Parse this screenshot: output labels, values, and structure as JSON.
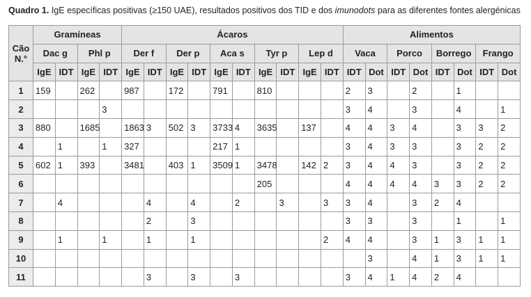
{
  "caption": {
    "label": "Quadro 1.",
    "before": "IgE específicas positivas (≥150 UAE), resultados positivos dos TID e dos",
    "italic": "imunodots",
    "after": "para as diferentes fontes alergénicas"
  },
  "table": {
    "corner": "Cão N.°",
    "groups": [
      {
        "label": "Gramíneas",
        "allergens": [
          {
            "name": "Dac g",
            "tests": [
              "IgE",
              "IDT"
            ]
          },
          {
            "name": "Phl p",
            "tests": [
              "IgE",
              "IDT"
            ]
          }
        ]
      },
      {
        "label": "Ácaros",
        "allergens": [
          {
            "name": "Der f",
            "tests": [
              "IgE",
              "IDT"
            ]
          },
          {
            "name": "Der p",
            "tests": [
              "IgE",
              "IDT"
            ]
          },
          {
            "name": "Aca s",
            "tests": [
              "IgE",
              "IDT"
            ]
          },
          {
            "name": "Tyr p",
            "tests": [
              "IgE",
              "IDT"
            ]
          },
          {
            "name": "Lep d",
            "tests": [
              "IgE",
              "IDT"
            ]
          }
        ]
      },
      {
        "label": "Alimentos",
        "allergens": [
          {
            "name": "Vaca",
            "tests": [
              "IDT",
              "Dot"
            ]
          },
          {
            "name": "Porco",
            "tests": [
              "IDT",
              "Dot"
            ]
          },
          {
            "name": "Borrego",
            "tests": [
              "IDT",
              "Dot"
            ]
          },
          {
            "name": "Frango",
            "tests": [
              "IDT",
              "Dot"
            ]
          }
        ]
      }
    ],
    "rows": [
      [
        1,
        159,
        null,
        262,
        null,
        987,
        null,
        172,
        null,
        791,
        null,
        810,
        null,
        null,
        null,
        2,
        3,
        null,
        2,
        null,
        1,
        null,
        null
      ],
      [
        2,
        null,
        null,
        null,
        3,
        null,
        null,
        null,
        null,
        null,
        null,
        null,
        null,
        null,
        null,
        3,
        4,
        null,
        3,
        null,
        4,
        null,
        1
      ],
      [
        3,
        880,
        null,
        1685,
        null,
        1863,
        3,
        502,
        3,
        3733,
        4,
        3635,
        null,
        137,
        null,
        4,
        4,
        3,
        4,
        null,
        3,
        3,
        2
      ],
      [
        4,
        null,
        1,
        null,
        1,
        327,
        null,
        null,
        null,
        217,
        1,
        null,
        null,
        null,
        null,
        3,
        4,
        3,
        3,
        null,
        3,
        2,
        2
      ],
      [
        5,
        602,
        1,
        393,
        null,
        3481,
        null,
        403,
        1,
        3509,
        1,
        3478,
        null,
        142,
        2,
        3,
        4,
        4,
        3,
        null,
        3,
        2,
        2
      ],
      [
        6,
        null,
        null,
        null,
        null,
        null,
        null,
        null,
        null,
        null,
        null,
        205,
        null,
        null,
        null,
        4,
        4,
        4,
        4,
        3,
        3,
        2,
        2
      ],
      [
        7,
        null,
        4,
        null,
        null,
        null,
        4,
        null,
        4,
        null,
        2,
        null,
        3,
        null,
        3,
        3,
        4,
        null,
        3,
        2,
        4,
        null,
        null
      ],
      [
        8,
        null,
        null,
        null,
        null,
        null,
        2,
        null,
        3,
        null,
        null,
        null,
        null,
        null,
        null,
        3,
        3,
        null,
        3,
        null,
        1,
        null,
        1
      ],
      [
        9,
        null,
        1,
        null,
        1,
        null,
        1,
        null,
        1,
        null,
        null,
        null,
        null,
        null,
        2,
        4,
        4,
        null,
        3,
        1,
        3,
        1,
        1
      ],
      [
        10,
        null,
        null,
        null,
        null,
        null,
        null,
        null,
        null,
        null,
        null,
        null,
        null,
        null,
        null,
        null,
        3,
        null,
        4,
        1,
        3,
        1,
        1
      ],
      [
        11,
        null,
        null,
        null,
        null,
        null,
        3,
        null,
        3,
        null,
        3,
        null,
        null,
        null,
        null,
        3,
        4,
        1,
        4,
        2,
        4,
        null,
        null
      ]
    ]
  }
}
